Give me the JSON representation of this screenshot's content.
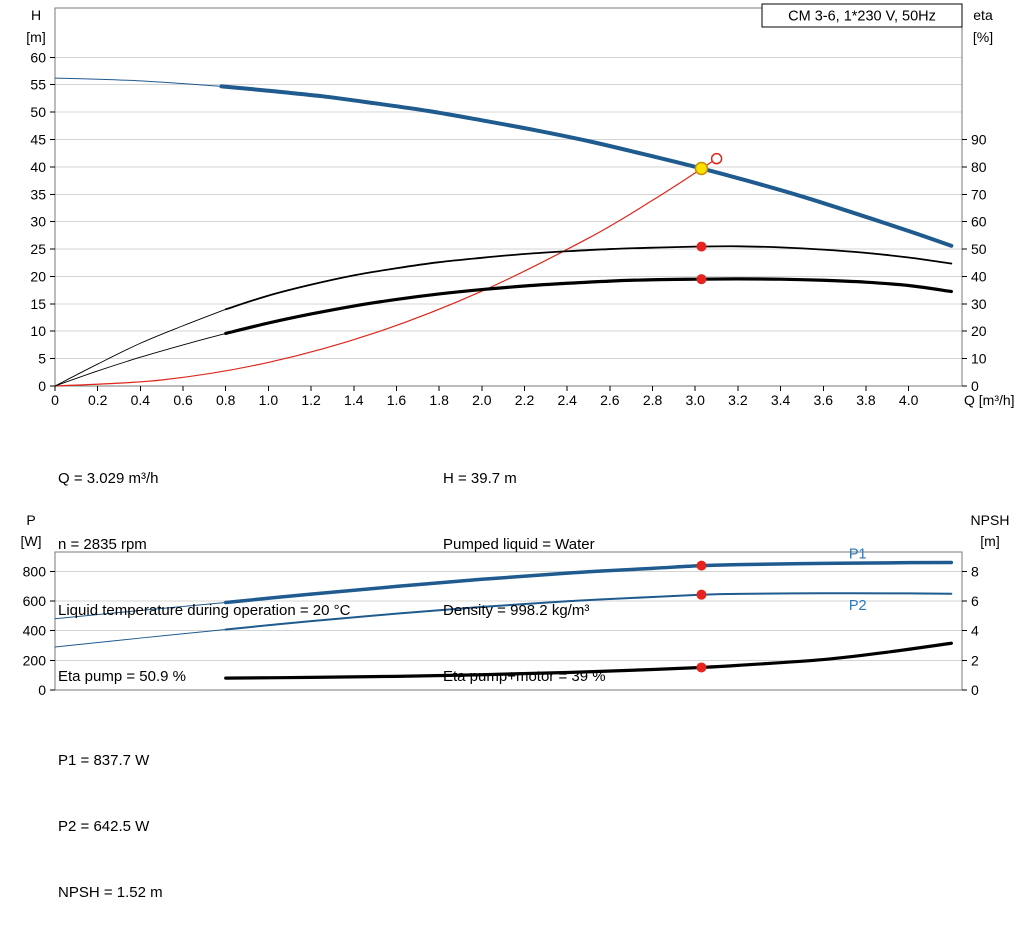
{
  "header": {
    "model_box": "CM 3-6, 1*230 V, 50Hz"
  },
  "colors": {
    "curve_blue": "#1f5b8e",
    "label_blue": "#2e75b6",
    "red": "#e0251b",
    "marker_red": "#e8221c",
    "duty_yellow": "#ffe000",
    "duty_ring": "#c49000",
    "black": "#000000",
    "grid": "#d4d4d4",
    "frame": "#7a7a7a"
  },
  "chart_data": [
    {
      "type": "line",
      "name": "qh-eta-chart",
      "title": "CM 3-6, 1*230 V, 50Hz",
      "x_axis": {
        "label": "Q [m³/h]",
        "min": 0,
        "max": 4.25,
        "show_labels": true,
        "ticks": [
          0,
          0.2,
          0.4,
          0.6,
          0.8,
          1.0,
          1.2,
          1.4,
          1.6,
          1.8,
          2.0,
          2.2,
          2.4,
          2.6,
          2.8,
          3.0,
          3.2,
          3.4,
          3.6,
          3.8,
          4.0
        ]
      },
      "y_left": {
        "title_lines": [
          "H",
          "[m]"
        ],
        "min": 0,
        "max": 69,
        "ticks": [
          0,
          5,
          10,
          15,
          20,
          25,
          30,
          35,
          40,
          45,
          50,
          55,
          60
        ]
      },
      "y_right": {
        "title_lines": [
          "eta",
          "[%]"
        ],
        "min": 0,
        "max": 138,
        "ticks": [
          0,
          10,
          20,
          30,
          40,
          50,
          60,
          70,
          80,
          90
        ]
      },
      "series": [
        {
          "name": "h-curve-lead",
          "axis": "left",
          "color": "#1f5b8e",
          "width": 1,
          "x": [
            0,
            0.2,
            0.4,
            0.6,
            0.78
          ],
          "y": [
            56.2,
            56.0,
            55.7,
            55.2,
            54.7
          ]
        },
        {
          "name": "h-curve",
          "axis": "left",
          "color": "#1f5b8e",
          "width": 4,
          "x": [
            0.78,
            1.0,
            1.25,
            1.5,
            1.75,
            2.0,
            2.25,
            2.5,
            2.75,
            3.0,
            3.25,
            3.5,
            3.75,
            4.0,
            4.2
          ],
          "y": [
            54.7,
            53.9,
            52.9,
            51.6,
            50.2,
            48.5,
            46.7,
            44.7,
            42.4,
            40.0,
            37.4,
            34.6,
            31.5,
            28.3,
            25.6
          ]
        },
        {
          "name": "system-curve",
          "axis": "left",
          "color": "#e0251b",
          "width": 1.2,
          "x": [
            0,
            0.5,
            1.0,
            1.5,
            2.0,
            2.5,
            2.8,
            3.0,
            3.1
          ],
          "y": [
            0,
            1.1,
            4.3,
            9.7,
            17.3,
            27.0,
            33.9,
            38.9,
            41.5
          ]
        },
        {
          "name": "eta-pump-lead",
          "axis": "left",
          "color": "#000000",
          "width": 0.9,
          "x": [
            0,
            0.2,
            0.4,
            0.6,
            0.8
          ],
          "y": [
            0,
            4,
            7.8,
            11,
            14
          ]
        },
        {
          "name": "eta-pump-curve",
          "axis": "left",
          "color": "#000000",
          "width": 1.8,
          "x": [
            0.8,
            1.0,
            1.2,
            1.4,
            1.6,
            1.8,
            2.0,
            2.2,
            2.4,
            2.6,
            2.8,
            3.0,
            3.2,
            3.4,
            3.6,
            3.8,
            4.0,
            4.2
          ],
          "y": [
            14,
            16.5,
            18.5,
            20.2,
            21.5,
            22.6,
            23.4,
            24.1,
            24.6,
            25.0,
            25.25,
            25.44,
            25.5,
            25.3,
            24.9,
            24.3,
            23.45,
            22.35
          ]
        },
        {
          "name": "eta-pump-motor-lead",
          "axis": "left",
          "color": "#000000",
          "width": 0.9,
          "x": [
            0,
            0.2,
            0.4,
            0.6,
            0.8
          ],
          "y": [
            0,
            2.75,
            5.25,
            7.5,
            9.6
          ]
        },
        {
          "name": "eta-pump-motor-curve",
          "axis": "left",
          "color": "#000000",
          "width": 3.2,
          "x": [
            0.8,
            1.0,
            1.2,
            1.4,
            1.6,
            1.8,
            2.0,
            2.2,
            2.4,
            2.6,
            2.8,
            3.0,
            3.2,
            3.4,
            3.6,
            3.8,
            4.0,
            4.2
          ],
          "y": [
            9.6,
            11.5,
            13.15,
            14.6,
            15.8,
            16.8,
            17.6,
            18.25,
            18.75,
            19.15,
            19.4,
            19.5,
            19.55,
            19.5,
            19.3,
            18.95,
            18.35,
            17.25
          ]
        }
      ],
      "markers": [
        {
          "name": "system-curve-end-marker",
          "x": 3.1,
          "y": 41.5,
          "r": 5,
          "fill": "#ffffff",
          "stroke": "#e0251b"
        },
        {
          "name": "eta-pump-point-marker",
          "x": 3.029,
          "y": 25.45,
          "r": 5,
          "fill": "#e8221c"
        },
        {
          "name": "eta-pump-motor-point-marker",
          "x": 3.029,
          "y": 19.5,
          "r": 5,
          "fill": "#e8221c"
        },
        {
          "name": "duty-point-marker",
          "x": 3.029,
          "y": 39.7,
          "r": 6,
          "fill": "#ffe000",
          "stroke": "#c49000"
        }
      ],
      "labels": []
    },
    {
      "type": "line",
      "name": "power-npsh-chart",
      "x_axis": {
        "label": "",
        "min": 0,
        "max": 4.25,
        "show_labels": false,
        "ticks": []
      },
      "y_left": {
        "title_lines": [
          "P",
          "[W]"
        ],
        "min": 0,
        "max": 930,
        "ticks": [
          0,
          200,
          400,
          600,
          800
        ]
      },
      "y_right": {
        "title_lines": [
          "NPSH",
          "[m]"
        ],
        "min": 0,
        "max": 9.3,
        "ticks": [
          0,
          2,
          4,
          6,
          8
        ]
      },
      "series": [
        {
          "name": "p1-curve-lead",
          "axis": "left",
          "color": "#1f5b8e",
          "width": 1,
          "x": [
            0,
            0.4,
            0.8
          ],
          "y": [
            480,
            536,
            590
          ]
        },
        {
          "name": "p1-curve",
          "axis": "left",
          "color": "#1f5b8e",
          "width": 3.5,
          "x": [
            0.8,
            1.2,
            1.6,
            2.0,
            2.4,
            2.8,
            3.029,
            3.2,
            3.6,
            4.0,
            4.2
          ],
          "y": [
            590,
            646,
            698,
            746,
            788,
            820,
            838,
            845,
            853,
            858,
            859
          ]
        },
        {
          "name": "p2-curve-lead",
          "axis": "left",
          "color": "#1f5b8e",
          "width": 1,
          "x": [
            0,
            0.4,
            0.8
          ],
          "y": [
            290,
            350,
            408
          ]
        },
        {
          "name": "p2-curve",
          "axis": "left",
          "color": "#1f5b8e",
          "width": 2,
          "x": [
            0.8,
            1.2,
            1.6,
            2.0,
            2.4,
            2.8,
            3.029,
            3.2,
            3.6,
            4.0,
            4.2
          ],
          "y": [
            408,
            464,
            515,
            560,
            598,
            627,
            642,
            648,
            652,
            651,
            649
          ]
        },
        {
          "name": "npsh-curve",
          "axis": "right",
          "color": "#000000",
          "width": 3.2,
          "x": [
            0.8,
            1.2,
            1.6,
            2.0,
            2.4,
            2.8,
            3.029,
            3.2,
            3.6,
            3.9,
            4.2
          ],
          "y": [
            0.8,
            0.85,
            0.92,
            1.03,
            1.18,
            1.38,
            1.52,
            1.66,
            2.05,
            2.55,
            3.15
          ]
        }
      ],
      "markers": [
        {
          "name": "p1-point-marker",
          "x": 3.029,
          "y": 838,
          "r": 5,
          "fill": "#e8221c"
        },
        {
          "name": "p2-point-marker",
          "x": 3.029,
          "y": 642.5,
          "r": 5,
          "fill": "#e8221c"
        },
        {
          "name": "npsh-point-marker",
          "x": 3.029,
          "y": 1.52,
          "axis": "right",
          "r": 5,
          "fill": "#e8221c"
        }
      ],
      "labels": [
        {
          "text": "P1",
          "x": 3.72,
          "y": 885,
          "color": "#2e75b6"
        },
        {
          "text": "P2",
          "x": 3.72,
          "y": 540,
          "color": "#2e75b6"
        }
      ]
    }
  ],
  "info_top": {
    "left": [
      "Q = 3.029 m³/h",
      "n = 2835 rpm",
      "Liquid temperature during operation = 20 °C",
      "Eta pump = 50.9 %"
    ],
    "right": [
      "H = 39.7 m",
      "Pumped liquid = Water",
      "Density = 998.2 kg/m³",
      "Eta pump+motor = 39 %"
    ]
  },
  "info_bottom": [
    "P1 = 837.7 W",
    "P2 = 642.5 W",
    "NPSH = 1.52 m"
  ]
}
